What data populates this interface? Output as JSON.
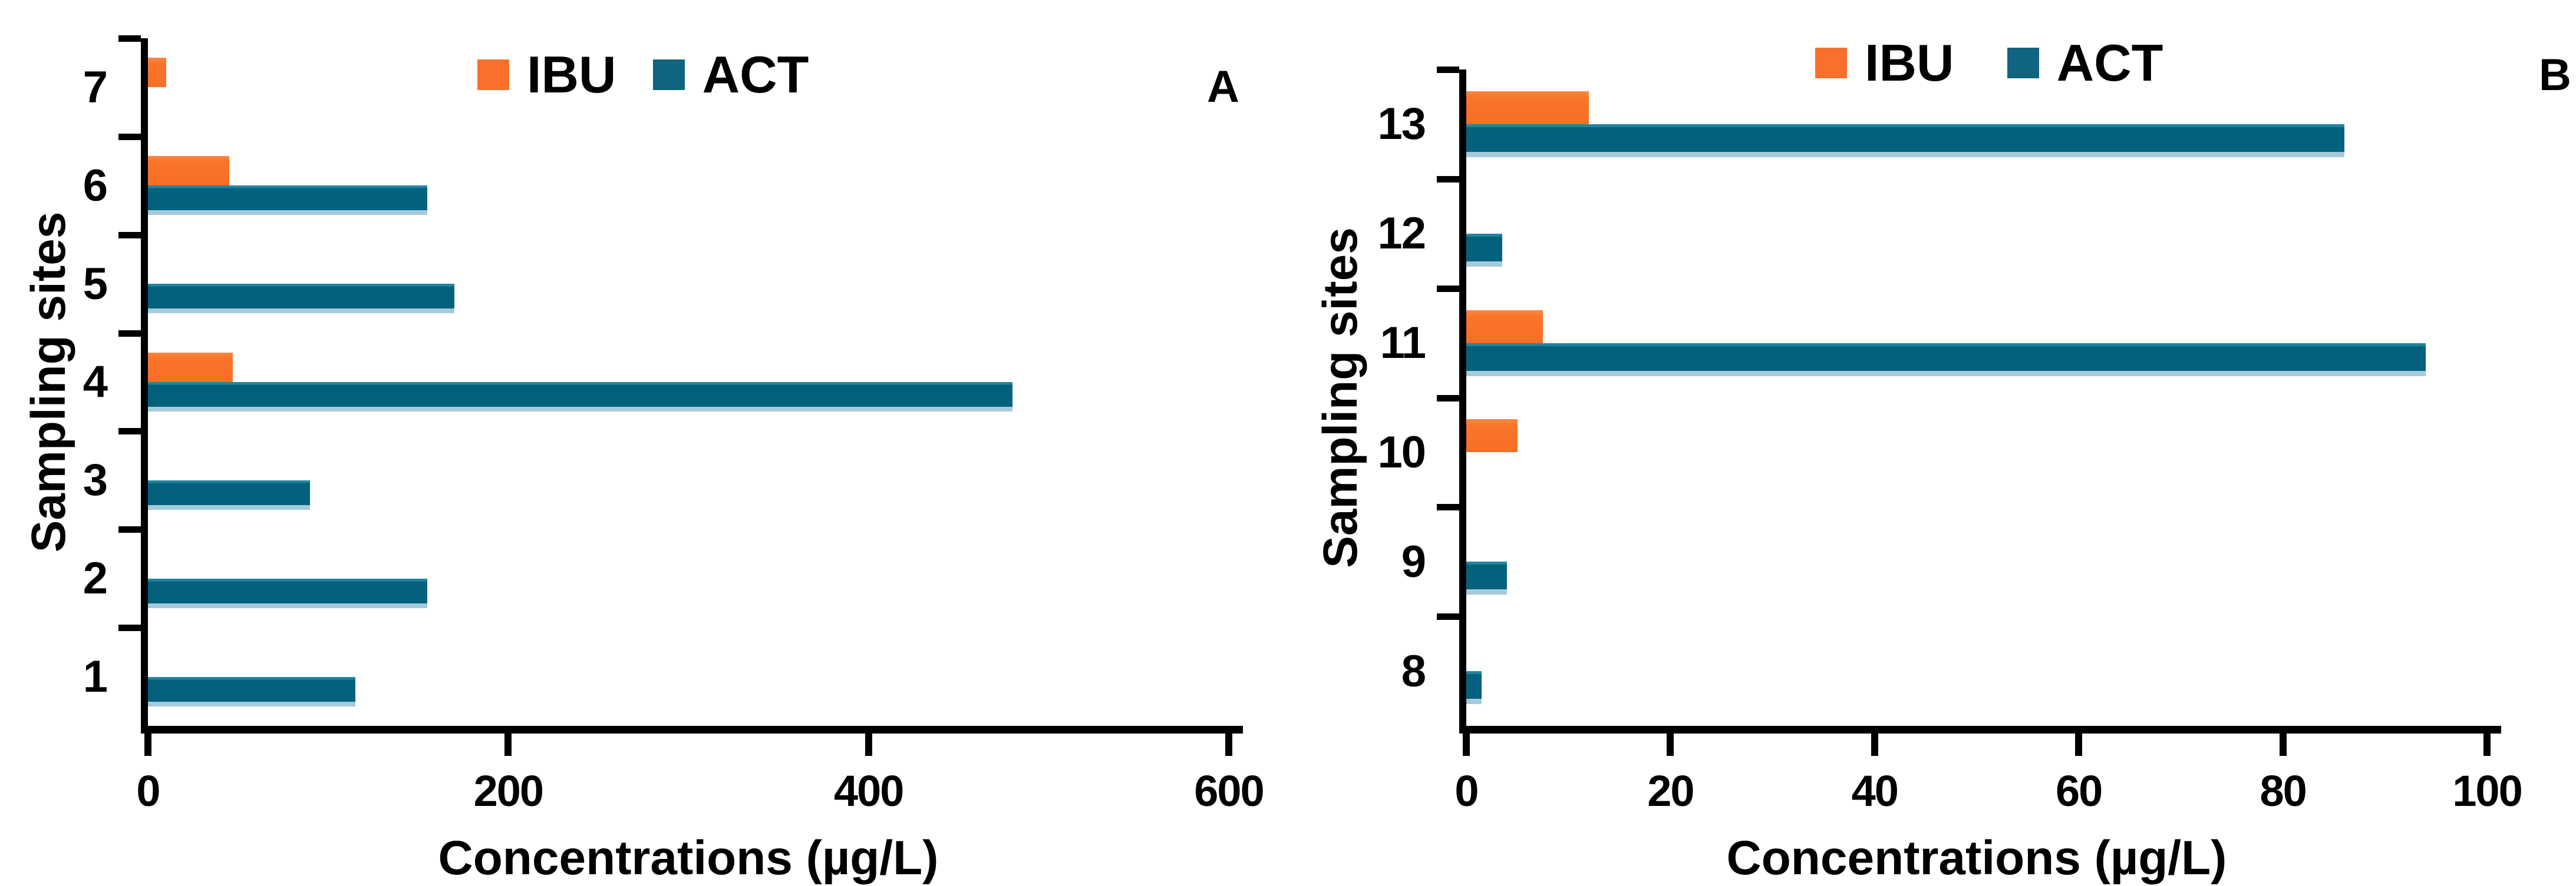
{
  "figure": {
    "xlabel": "Concentrations (µg/L)",
    "ylabel": "Sampling sites",
    "legend_labels": [
      "IBU",
      "ACT"
    ]
  },
  "colors": {
    "ibu_orange": "#FA7429",
    "act_blue": "#03617E",
    "act_edge_top": "#1F85A0",
    "act_edge_bottom": "#A6CADA",
    "axis_black": "#000000"
  },
  "chart_data": [
    {
      "type": "bar",
      "orientation": "horizontal",
      "panel_label": "A",
      "xlabel": "Concentrations (µg/L)",
      "ylabel": "Sampling sites",
      "categories_top_to_bottom": [
        "7",
        "6",
        "5",
        "4",
        "3",
        "2",
        "1"
      ],
      "series": [
        {
          "name": "IBU",
          "color": "#FA7429",
          "values": [
            10,
            45,
            0,
            47,
            0,
            0,
            0
          ]
        },
        {
          "name": "ACT",
          "color": "#03617E",
          "values": [
            0,
            155,
            170,
            480,
            90,
            155,
            115
          ]
        }
      ],
      "xlim": [
        0,
        600
      ],
      "xticks": [
        "0",
        "200",
        "400",
        "600"
      ],
      "legend": [
        "IBU",
        "ACT"
      ],
      "legend_position": "top",
      "grid": false
    },
    {
      "type": "bar",
      "orientation": "horizontal",
      "panel_label": "B",
      "xlabel": "Concentrations (µg/L)",
      "ylabel": "Sampling sites",
      "categories_top_to_bottom": [
        "13",
        "12",
        "11",
        "10",
        "9",
        "8"
      ],
      "series": [
        {
          "name": "IBU",
          "color": "#FA7429",
          "values": [
            12,
            0,
            7.5,
            5,
            0,
            0
          ]
        },
        {
          "name": "ACT",
          "color": "#03617E",
          "values": [
            86,
            3.5,
            94,
            0,
            4,
            1.5
          ]
        }
      ],
      "xlim": [
        0,
        100
      ],
      "xticks": [
        "0",
        "20",
        "40",
        "60",
        "80",
        "100"
      ],
      "legend": [
        "IBU",
        "ACT"
      ],
      "legend_position": "top",
      "grid": false
    }
  ]
}
